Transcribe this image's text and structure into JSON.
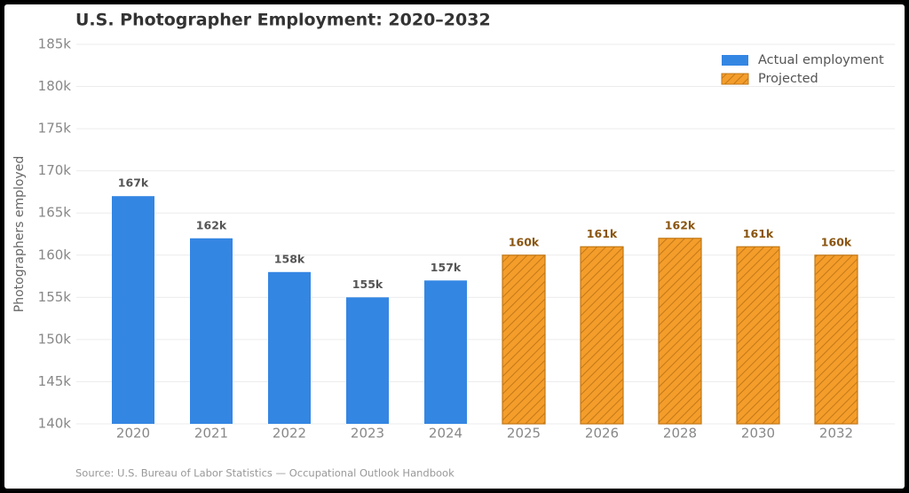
{
  "chart_data": {
    "type": "bar",
    "title": "U.S. Photographer Employment: 2020–2032",
    "ylabel": "Photographers employed",
    "source": "Source: U.S. Bureau of Labor Statistics — Occupational Outlook Handbook",
    "categories": [
      "2020",
      "2021",
      "2022",
      "2023",
      "2024",
      "2025",
      "2026",
      "2028",
      "2030",
      "2032"
    ],
    "series": [
      {
        "name": "Actual employment",
        "color": "#3486e3",
        "values": [
          167000,
          162000,
          158000,
          155000,
          157000,
          null,
          null,
          null,
          null,
          null
        ],
        "value_labels": [
          "167k",
          "162k",
          "158k",
          "155k",
          "157k",
          null,
          null,
          null,
          null,
          null
        ],
        "label_color": "#555555"
      },
      {
        "name": "Projected",
        "color": "#f49d2b",
        "edgecolor": "#c27817",
        "hatch": true,
        "values": [
          null,
          null,
          null,
          null,
          null,
          160000,
          161000,
          162000,
          161000,
          160000
        ],
        "value_labels": [
          null,
          null,
          null,
          null,
          null,
          "160k",
          "161k",
          "162k",
          "161k",
          "160k"
        ],
        "label_color": "#8a5510"
      }
    ],
    "ylim": [
      140000,
      185000
    ],
    "yticks": [
      {
        "value": 140000,
        "label": "140k"
      },
      {
        "value": 145000,
        "label": "145k"
      },
      {
        "value": 150000,
        "label": "150k"
      },
      {
        "value": 155000,
        "label": "155k"
      },
      {
        "value": 160000,
        "label": "160k"
      },
      {
        "value": 165000,
        "label": "165k"
      },
      {
        "value": 170000,
        "label": "170k"
      },
      {
        "value": 175000,
        "label": "175k"
      },
      {
        "value": 180000,
        "label": "180k"
      },
      {
        "value": 185000,
        "label": "185k"
      }
    ],
    "grid": true,
    "legend": "upper right"
  }
}
